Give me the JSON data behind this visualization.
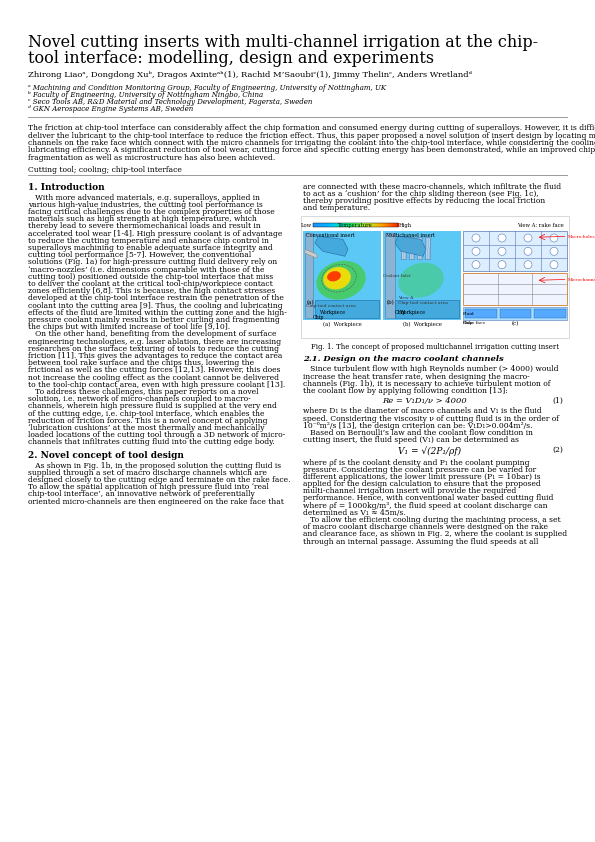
{
  "title_line1": "Novel cutting inserts with multi-channel irrigation at the chip-",
  "title_line2": "tool interface: modelling, design and experiments",
  "authors": "Zhirong Liaoᵃ, Dongdong Xuᵇ, Dragos Axinteᵃʰ(1), Rachid M’Saoubiᶜ(1), Jimmy Thelinᶜ, Anders Wretlandᵈ",
  "affil1": "ᵃ Machining and Condition Monitoring Group, Faculty of Engineering, University of Nottingham, UK",
  "affil2": "ᵇ Faculty of Engineering, University of Nottingham Ningbo, China",
  "affil3": "ᶜ Seco Tools AB, R&D Material and Technology Development, Fagersta, Sweden",
  "affil4": "ᵈ GKN Aerospace Engine Systems AB, Sweden",
  "abstract_line1": "The friction at chip-tool interface can considerably affect the chip formation and consumed energy during cutting of superalloys. However, it is difficult to",
  "abstract_line2": "deliver the lubricant to the chip-tool interface to reduce the friction effect. Thus, this paper proposed a novel solution of insert design by locating macro-",
  "abstract_line3": "channels on the rake face which connect with the micro channels for irrigating the coolant into the chip-tool interface, while considering the cooling and",
  "abstract_line4": "lubricating efficiency. A significant reduction of tool wear, cutting force and specific cutting energy has been demonstrated, while an improved chip",
  "abstract_line5": "fragmentation as well as microstructure has also been achieved.",
  "keywords": "Cutting tool; cooling; chip-tool interface",
  "intro_heading": "1. Introduction",
  "intro_lines": [
    "   With more advanced materials, e.g. superalloys, applied in",
    "various high-value industries, the cutting tool performance is",
    "facing critical challenges due to the complex properties of those",
    "materials such as high strength at high temperature, which",
    "thereby lead to severe thermomechanical loads and result in",
    "accelerated tool wear [1-4]. High pressure coolant is of advantage",
    "to reduce the cutting temperature and enhance chip control in",
    "superalloys machining to enable adequate surface integrity and",
    "cutting tool performance [5-7]. However, the conventional",
    "solutions (Fig. 1a) for high-pressure cutting fluid delivery rely on",
    "‘macro-nozzles’ (i.e. dimensions comparable with those of the",
    "cutting tool) positioned outside the chip-tool interface that miss",
    "to deliver the coolant at the critical tool-chip/workpiece contact",
    "zones efficiently [6,8]. This is because, the high contact stresses",
    "developed at the chip-tool interface restrain the penetration of the",
    "coolant into the cutting area [9]. Thus, the cooling and lubricating",
    "effects of the fluid are limited within the cutting zone and the high-",
    "pressure coolant mainly results in better curling and fragmenting",
    "the chips but with limited increase of tool life [9,10].",
    "   On the other hand, benefiting from the development of surface",
    "engineering technologies, e.g. laser ablation, there are increasing",
    "researches on the surface texturing of tools to reduce the cutting",
    "friction [11]. This gives the advantages to reduce the contact area",
    "between tool rake surface and the chips thus, lowering the",
    "frictional as well as the cutting forces [12,13]. However, this does",
    "not increase the cooling effect as the coolant cannot be delivered",
    "to the tool-chip contact area, even with high pressure coolant [13].",
    "   To address these challenges, this paper reports on a novel",
    "solution, i.e. network of micro-channels coupled to macro-",
    "channels, wherein high pressure fluid is supplied at the very end",
    "of the cutting edge, i.e. chip-tool interface, which enables the",
    "reduction of friction forces. This is a novel concept of applying",
    "‘lubrication cushions’ at the most thermally and mechanically",
    "loaded locations of the cutting tool through a 3D network of micro-",
    "channels that infiltrates cutting fluid into the cutting edge body."
  ],
  "design_heading": "2. Novel concept of tool design",
  "design_lines": [
    "   As shown in Fig. 1b, in the proposed solution the cutting fluid is",
    "supplied through a set of macro discharge channels which are",
    "designed closely to the cutting edge and terminate on the rake face.",
    "To allow the spatial application of high pressure fluid into ‘real",
    "chip-tool interface’, an innovative network of preferentially",
    "oriented micro-channels are then engineered on the rake face that"
  ],
  "right_intro_lines": [
    "are connected with these macro-channels, which infiltrate the fluid",
    "to act as a ‘cushion’ for the chip sliding thereon (see Fig. 1c),",
    "thereby providing positive effects by reducing the local friction",
    "and temperature."
  ],
  "fig_caption": "Fig. 1. The concept of proposed multichannel irrigation cutting insert",
  "section21_heading": "2.1. Design on the macro coolant channels",
  "section21_lines": [
    "   Since turbulent flow with high Reynolds number (> 4000) would",
    "increase the heat transfer rate, when designing the macro-",
    "channels (Fig. 1b), it is necessary to achieve turbulent motion of",
    "the coolant flow by applying following condition [13]:"
  ],
  "eq1_label": "Re = V₁D₁/ν > 4000",
  "eq1_num": "(1)",
  "eq2_lines": [
    "where D₁ is the diameter of macro channels and V₁ is the fluid",
    "speed. Considering the viscosity ν of cutting fluid is in the order of",
    "10⁻⁶m²/s [13], the design criterion can be: V₁D₁>0.004m²/s.",
    "   Based on Bernoulli’s law and the coolant flow condition in",
    "cutting insert, the fluid speed (V₁) can be determined as"
  ],
  "eq2_label": "V₁ = √(2P₁/ρf)",
  "eq2_num": "(2)",
  "eq3_lines": [
    "where ρf is the coolant density and P₁ the coolant pumping",
    "pressure. Considering the coolant pressure can be varied for",
    "different applications, the lower limit pressure (P₁ = 10bar) is",
    "applied for the design calculation to ensure that the proposed",
    "multi-channel irrigation insert will provide the required",
    "performance. Hence, with conventional water based cutting fluid",
    "where ρf = 1000kg/m³, the fluid speed at coolant discharge can",
    "determined as V₁ ≈ 45m/s.",
    "   To allow the efficient cooling during the machining process, a set",
    "of macro coolant discharge channels were designed on the rake",
    "and clearance face, as shown in Fig. 2, where the coolant is supplied",
    "through an internal passage. Assuming the fluid speeds at all"
  ],
  "bg_color": "#ffffff",
  "separator_color": "#999999",
  "title_fontsize": 11.5,
  "author_fontsize": 6.0,
  "affil_fontsize": 5.0,
  "abstract_fontsize": 5.5,
  "body_fontsize": 5.5,
  "heading_fontsize": 6.5,
  "subheading_fontsize": 6.0
}
